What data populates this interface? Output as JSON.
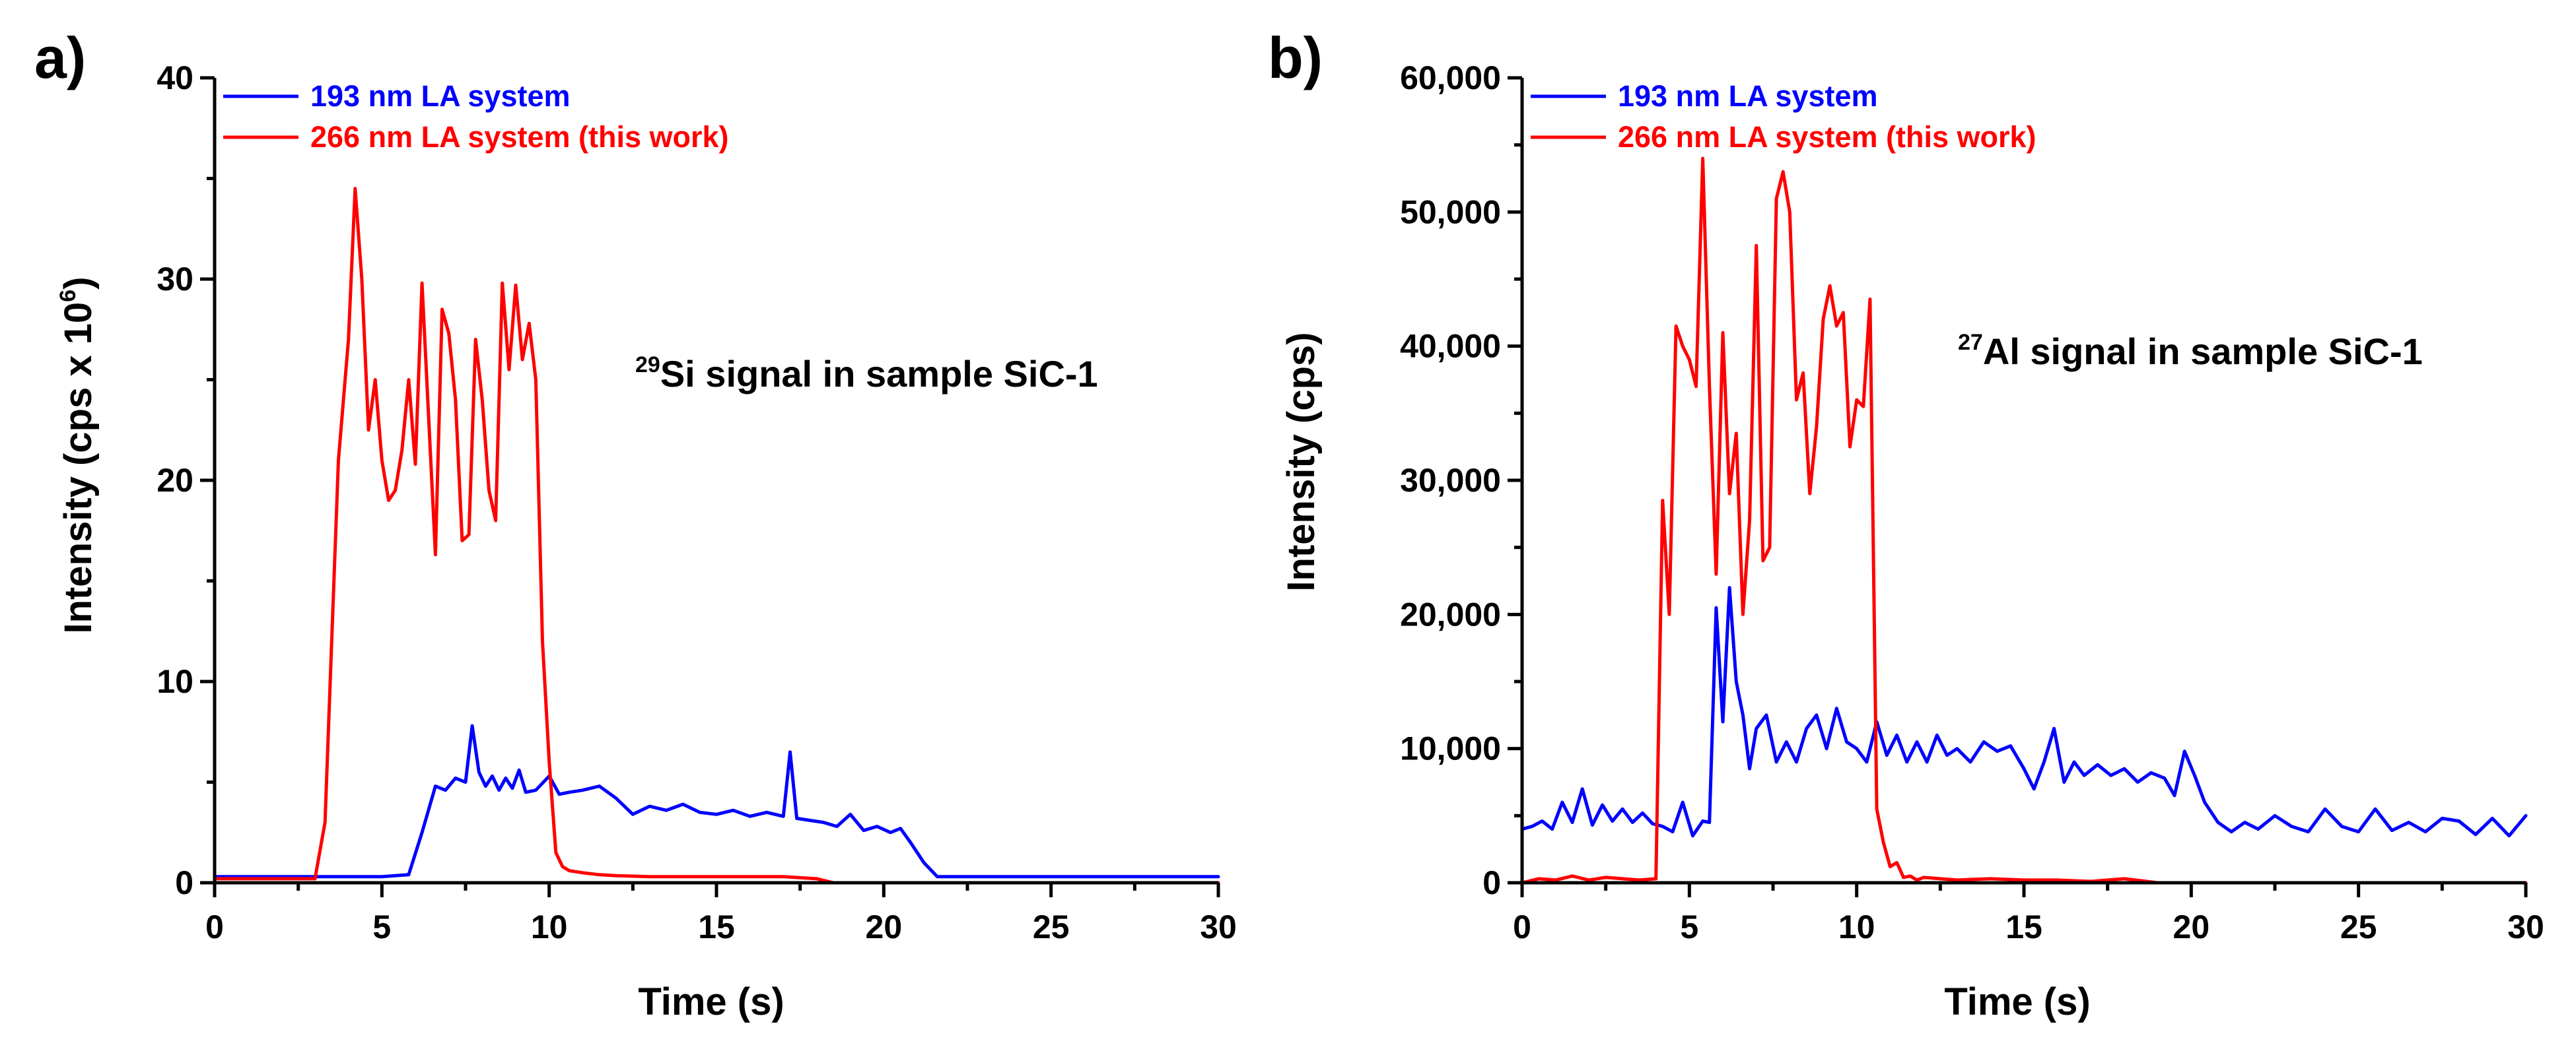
{
  "chart_data": [
    {
      "type": "line",
      "panel_label": "a)",
      "annotation": {
        "isotope": "29",
        "text": "Si signal in sample SiC-1"
      },
      "xlabel": "Time (s)",
      "ylabel": "Intensity (cps x 10",
      "ylabel_sup": "6",
      "ylabel_end": ")",
      "xlim": [
        0,
        30
      ],
      "ylim": [
        0,
        40
      ],
      "xticks": [
        0,
        5,
        10,
        15,
        20,
        25,
        30
      ],
      "yticks": [
        0,
        10,
        20,
        30,
        40
      ],
      "xtick_labels": [
        "0",
        "5",
        "10",
        "15",
        "20",
        "25",
        "30"
      ],
      "ytick_labels": [
        "0",
        "10",
        "20",
        "30",
        "40"
      ],
      "legend": [
        {
          "label": "193 nm LA system",
          "color": "#0000ff"
        },
        {
          "label": "266 nm LA system (this work)",
          "color": "#ff0000"
        }
      ],
      "series": [
        {
          "name": "193 nm LA system",
          "color": "#0000ff",
          "x": [
            0,
            1,
            2,
            3,
            4,
            5,
            5.8,
            6.2,
            6.6,
            6.9,
            7.2,
            7.5,
            7.7,
            7.9,
            8.1,
            8.3,
            8.5,
            8.7,
            8.9,
            9.1,
            9.3,
            9.6,
            10,
            10.3,
            10.6,
            11,
            11.5,
            12,
            12.5,
            13,
            13.5,
            14,
            14.5,
            15,
            15.5,
            16,
            16.5,
            17,
            17.2,
            17.4,
            17.8,
            18.2,
            18.6,
            19,
            19.4,
            19.8,
            20.2,
            20.5,
            20.8,
            21.2,
            21.6,
            22,
            23,
            24,
            25,
            26,
            27,
            28,
            29,
            30
          ],
          "y": [
            0.3,
            0.3,
            0.3,
            0.3,
            0.3,
            0.3,
            0.4,
            2.5,
            4.8,
            4.6,
            5.2,
            5.0,
            7.8,
            5.5,
            4.8,
            5.3,
            4.6,
            5.2,
            4.7,
            5.6,
            4.5,
            4.6,
            5.3,
            4.4,
            4.5,
            4.6,
            4.8,
            4.2,
            3.4,
            3.8,
            3.6,
            3.9,
            3.5,
            3.4,
            3.6,
            3.3,
            3.5,
            3.3,
            6.5,
            3.2,
            3.1,
            3.0,
            2.8,
            3.4,
            2.6,
            2.8,
            2.5,
            2.7,
            2.0,
            1.0,
            0.3,
            0.3,
            0.3,
            0.3,
            0.3,
            0.3,
            0.3,
            0.3,
            0.3,
            0.3
          ]
        },
        {
          "name": "266 nm LA system (this work)",
          "color": "#ff0000",
          "x": [
            0,
            1,
            2,
            3,
            3.3,
            3.5,
            3.7,
            4.0,
            4.2,
            4.4,
            4.6,
            4.8,
            5.0,
            5.2,
            5.4,
            5.6,
            5.8,
            6.0,
            6.2,
            6.4,
            6.6,
            6.8,
            7.0,
            7.2,
            7.4,
            7.6,
            7.8,
            8.0,
            8.2,
            8.4,
            8.6,
            8.8,
            9.0,
            9.2,
            9.4,
            9.6,
            9.8,
            10.0,
            10.2,
            10.4,
            10.6,
            11.0,
            11.5,
            12,
            13,
            14,
            15,
            16,
            17,
            18,
            18.5,
            19,
            20,
            25,
            30
          ],
          "y": [
            0.2,
            0.2,
            0.2,
            0.2,
            3.0,
            12.0,
            21.0,
            27.0,
            34.5,
            30.0,
            22.5,
            25.0,
            21.0,
            19.0,
            19.5,
            21.5,
            25.0,
            20.8,
            29.8,
            23.0,
            16.3,
            28.5,
            27.3,
            24.0,
            17.0,
            17.3,
            27.0,
            24.0,
            19.5,
            18.0,
            29.8,
            25.5,
            29.7,
            26.0,
            27.8,
            25.0,
            12.0,
            6.0,
            1.5,
            0.8,
            0.6,
            0.5,
            0.4,
            0.35,
            0.3,
            0.3,
            0.3,
            0.3,
            0.3,
            0.2,
            0.0,
            0.0,
            0.0,
            0.0,
            0.0
          ]
        }
      ]
    },
    {
      "type": "line",
      "panel_label": "b)",
      "annotation": {
        "isotope": "27",
        "text": "Al signal in sample SiC-1"
      },
      "xlabel": "Time (s)",
      "ylabel": "Intensity (cps)",
      "xlim": [
        0,
        30
      ],
      "ylim": [
        0,
        60000
      ],
      "xticks": [
        0,
        5,
        10,
        15,
        20,
        25,
        30
      ],
      "yticks": [
        0,
        10000,
        20000,
        30000,
        40000,
        50000,
        60000
      ],
      "xtick_labels": [
        "0",
        "5",
        "10",
        "15",
        "20",
        "25",
        "30"
      ],
      "ytick_labels": [
        "0",
        "10,000",
        "20,000",
        "30,000",
        "40,000",
        "50,000",
        "60,000"
      ],
      "legend": [
        {
          "label": "193 nm LA system",
          "color": "#0000ff"
        },
        {
          "label": "266 nm LA system (this work)",
          "color": "#ff0000"
        }
      ],
      "series": [
        {
          "name": "193 nm LA system",
          "color": "#0000ff",
          "x": [
            0,
            0.3,
            0.6,
            0.9,
            1.2,
            1.5,
            1.8,
            2.1,
            2.4,
            2.7,
            3.0,
            3.3,
            3.6,
            3.9,
            4.2,
            4.5,
            4.8,
            5.1,
            5.4,
            5.6,
            5.8,
            6.0,
            6.2,
            6.4,
            6.6,
            6.8,
            7.0,
            7.3,
            7.6,
            7.9,
            8.2,
            8.5,
            8.8,
            9.1,
            9.4,
            9.7,
            10.0,
            10.3,
            10.6,
            10.9,
            11.2,
            11.5,
            11.8,
            12.1,
            12.4,
            12.7,
            13.0,
            13.4,
            13.8,
            14.2,
            14.6,
            15.0,
            15.3,
            15.6,
            15.9,
            16.2,
            16.5,
            16.8,
            17.2,
            17.6,
            18.0,
            18.4,
            18.8,
            19.2,
            19.5,
            19.8,
            20.1,
            20.4,
            20.8,
            21.2,
            21.6,
            22.0,
            22.5,
            23.0,
            23.5,
            24.0,
            24.5,
            25.0,
            25.5,
            26.0,
            26.5,
            27.0,
            27.5,
            28.0,
            28.5,
            29.0,
            29.5,
            30.0
          ],
          "y": [
            4000,
            4200,
            4600,
            4000,
            6000,
            4500,
            7000,
            4300,
            5800,
            4600,
            5500,
            4500,
            5200,
            4400,
            4200,
            3800,
            6000,
            3500,
            4600,
            4500,
            20500,
            12000,
            22000,
            15000,
            12500,
            8500,
            11500,
            12500,
            9000,
            10500,
            9000,
            11500,
            12500,
            10000,
            13000,
            10500,
            10000,
            9000,
            12000,
            9500,
            11000,
            9000,
            10500,
            9000,
            11000,
            9500,
            10000,
            9000,
            10500,
            9800,
            10200,
            8500,
            7000,
            9000,
            11500,
            7500,
            9000,
            8000,
            8800,
            8000,
            8500,
            7500,
            8200,
            7800,
            6500,
            9800,
            8000,
            6000,
            4500,
            3800,
            4500,
            4000,
            5000,
            4200,
            3800,
            5500,
            4200,
            3800,
            5500,
            3900,
            4500,
            3800,
            4800,
            4600,
            3600,
            4800,
            3500,
            5000
          ],
          "y_tail_end": 3800
        },
        {
          "name": "266 nm LA system (this work)",
          "color": "#ff0000",
          "x": [
            0,
            0.5,
            1,
            1.5,
            2,
            2.5,
            3,
            3.5,
            4,
            4.2,
            4.4,
            4.6,
            4.8,
            5.0,
            5.2,
            5.4,
            5.6,
            5.8,
            6.0,
            6.2,
            6.4,
            6.6,
            6.8,
            7.0,
            7.2,
            7.4,
            7.6,
            7.8,
            8.0,
            8.2,
            8.4,
            8.6,
            8.8,
            9.0,
            9.2,
            9.4,
            9.6,
            9.8,
            10.0,
            10.2,
            10.4,
            10.6,
            10.8,
            11.0,
            11.2,
            11.4,
            11.6,
            11.8,
            12.0,
            12.5,
            13,
            14,
            15,
            16,
            17,
            18,
            19,
            20,
            25,
            30
          ],
          "y": [
            0,
            300,
            200,
            500,
            200,
            400,
            300,
            200,
            300,
            28500,
            20000,
            41500,
            40000,
            39000,
            37000,
            54000,
            37000,
            23000,
            41000,
            29000,
            33500,
            20000,
            27000,
            47500,
            24000,
            25000,
            51000,
            53000,
            50000,
            36000,
            38000,
            29000,
            34000,
            42000,
            44500,
            41500,
            42500,
            32500,
            36000,
            35500,
            43500,
            5500,
            3000,
            1200,
            1500,
            400,
            500,
            200,
            400,
            300,
            200,
            300,
            200,
            200,
            100,
            300,
            0,
            0,
            0,
            0
          ]
        }
      ]
    }
  ]
}
